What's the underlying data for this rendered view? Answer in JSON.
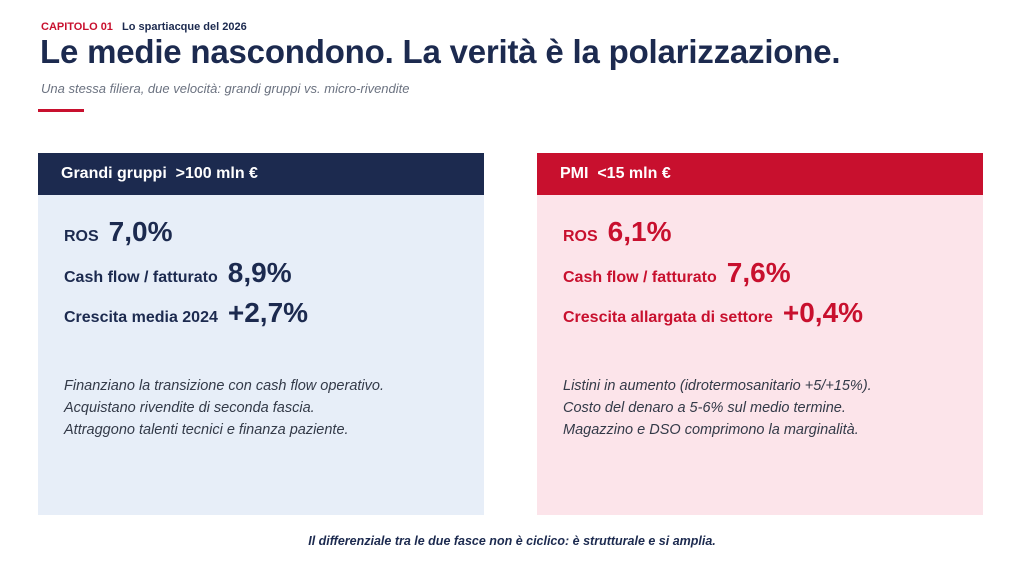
{
  "header": {
    "chapter": "CAPITOLO 01",
    "chapter_subtitle": "Lo spartiacque del 2026",
    "title": "Le medie nascondono. La verità è la polarizzazione.",
    "subtitle": "Una stessa filiera, due velocità: grandi gruppi vs. micro-rivendite"
  },
  "colors": {
    "navy": "#1c2a4f",
    "red": "#c8102e",
    "left_panel_bg": "#e7eef8",
    "right_panel_bg": "#fce4ea"
  },
  "cards": [
    {
      "heading": "Grandi gruppi  >100 mln €",
      "metrics": [
        {
          "label": "ROS",
          "value": "7,0%"
        },
        {
          "label": "Cash flow / fatturato",
          "value": "8,9%"
        },
        {
          "label": "Crescita media 2024",
          "value": "+2,7%"
        }
      ],
      "notes": [
        "Finanziano la transizione con cash flow operativo.",
        "Acquistano rivendite di seconda fascia.",
        "Attraggono talenti tecnici e finanza paziente."
      ]
    },
    {
      "heading": "PMI  <15 mln €",
      "metrics": [
        {
          "label": "ROS",
          "value": "6,1%"
        },
        {
          "label": "Cash flow / fatturato",
          "value": "7,6%"
        },
        {
          "label": "Crescita allargata di settore",
          "value": "+0,4%"
        }
      ],
      "notes": [
        "Listini in aumento (idrotermosanitario +5/+15%).",
        "Costo del denaro a 5-6% sul medio termine.",
        "Magazzino e DSO comprimono la marginalità."
      ]
    }
  ],
  "footer": "Il differenziale tra le due fasce non è ciclico: è strutturale e si amplia."
}
